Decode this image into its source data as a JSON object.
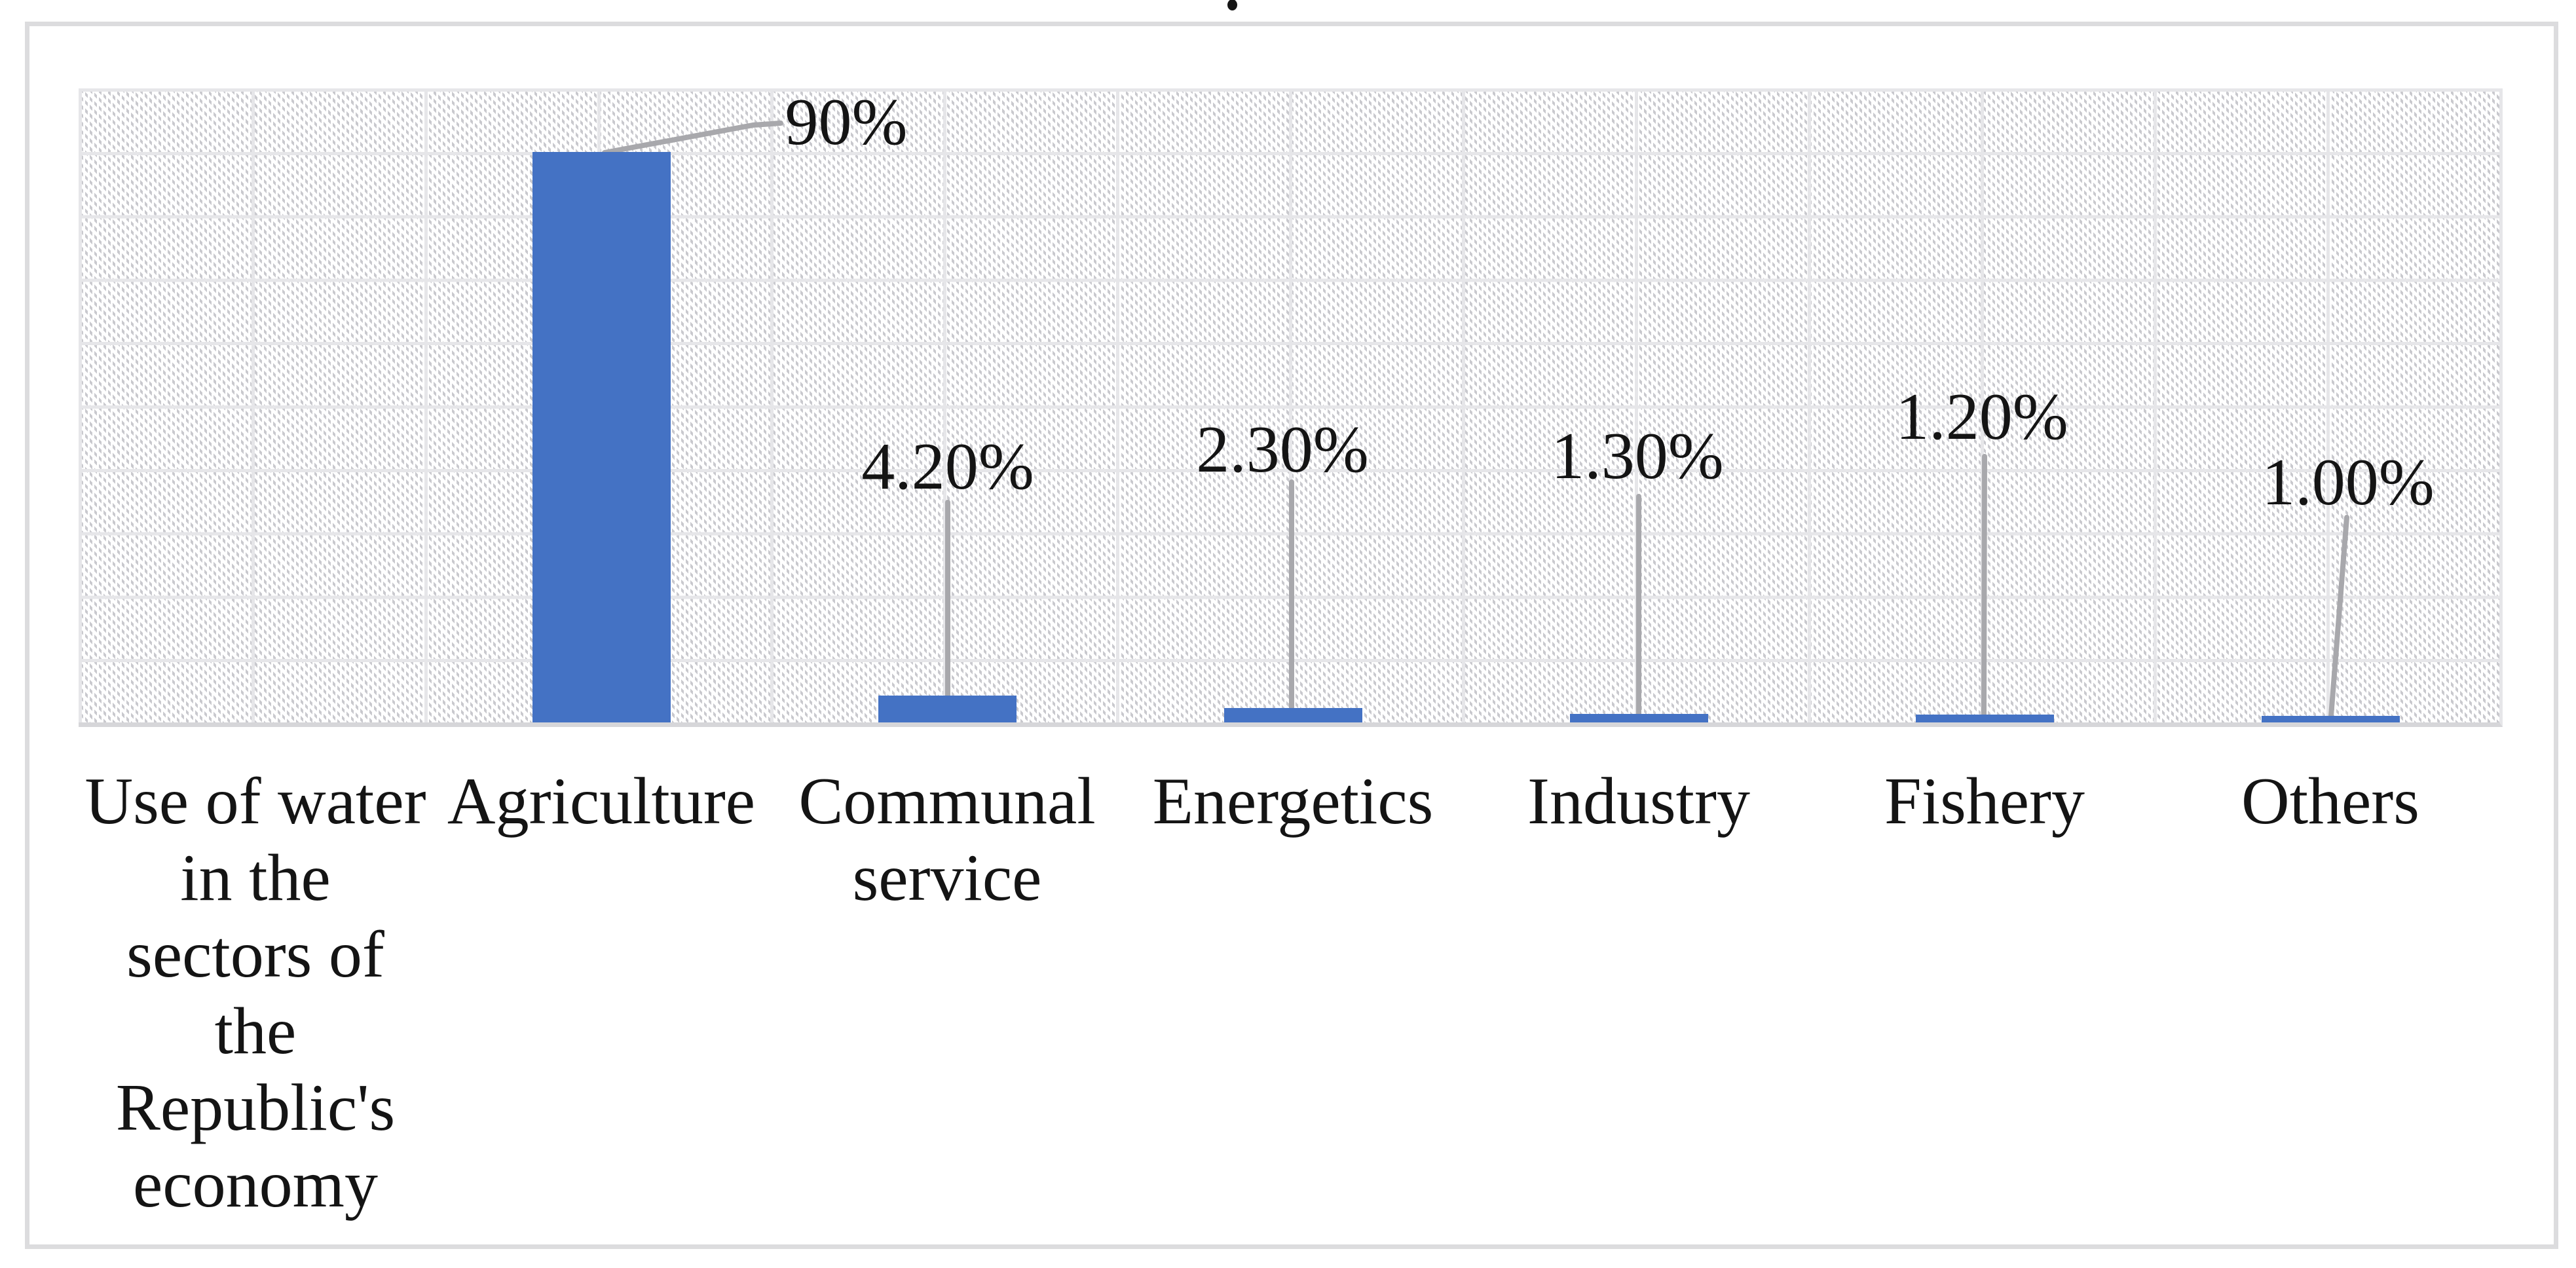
{
  "figure": {
    "title_fragment": ".",
    "background": "#ffffff"
  },
  "chart_data": {
    "type": "bar",
    "title": "",
    "xlabel": "",
    "ylabel": "",
    "categories": [
      "Use of water in the sectors of the Republic's economy",
      "Agriculture",
      "Communal service",
      "Energetics",
      "Industry",
      "Fishery",
      "Others"
    ],
    "category_display_lines": [
      [
        "Use of water",
        "in the",
        "sectors of",
        "the",
        "Republic's",
        "economy"
      ],
      [
        "Agriculture"
      ],
      [
        "Communal",
        "service"
      ],
      [
        "Energetics"
      ],
      [
        "Industry"
      ],
      [
        "Fishery"
      ],
      [
        "Others"
      ]
    ],
    "values": [
      null,
      90,
      4.2,
      2.3,
      1.3,
      1.2,
      1.0
    ],
    "data_labels": [
      "",
      "90%",
      "4.20%",
      "2.30%",
      "1.30%",
      "1.20%",
      "1.00%"
    ],
    "ylim": [
      0,
      100
    ],
    "gridlines": {
      "horizontal_interval_pct": 10,
      "vertical_lanes": 14,
      "visible": true
    },
    "y_tick_labels_visible": false,
    "legend": null,
    "plot_background": "diagonal-hatch"
  },
  "colors": {
    "bar_fill": "#4472c4",
    "leader_line": "#a8a8ac",
    "gridline": "#e6e6e9",
    "axis_line": "#d6d6d9",
    "chart_border": "#dcdcde",
    "hatch_dot": "#c9c9ce",
    "text": "#141414",
    "background": "#ffffff"
  }
}
